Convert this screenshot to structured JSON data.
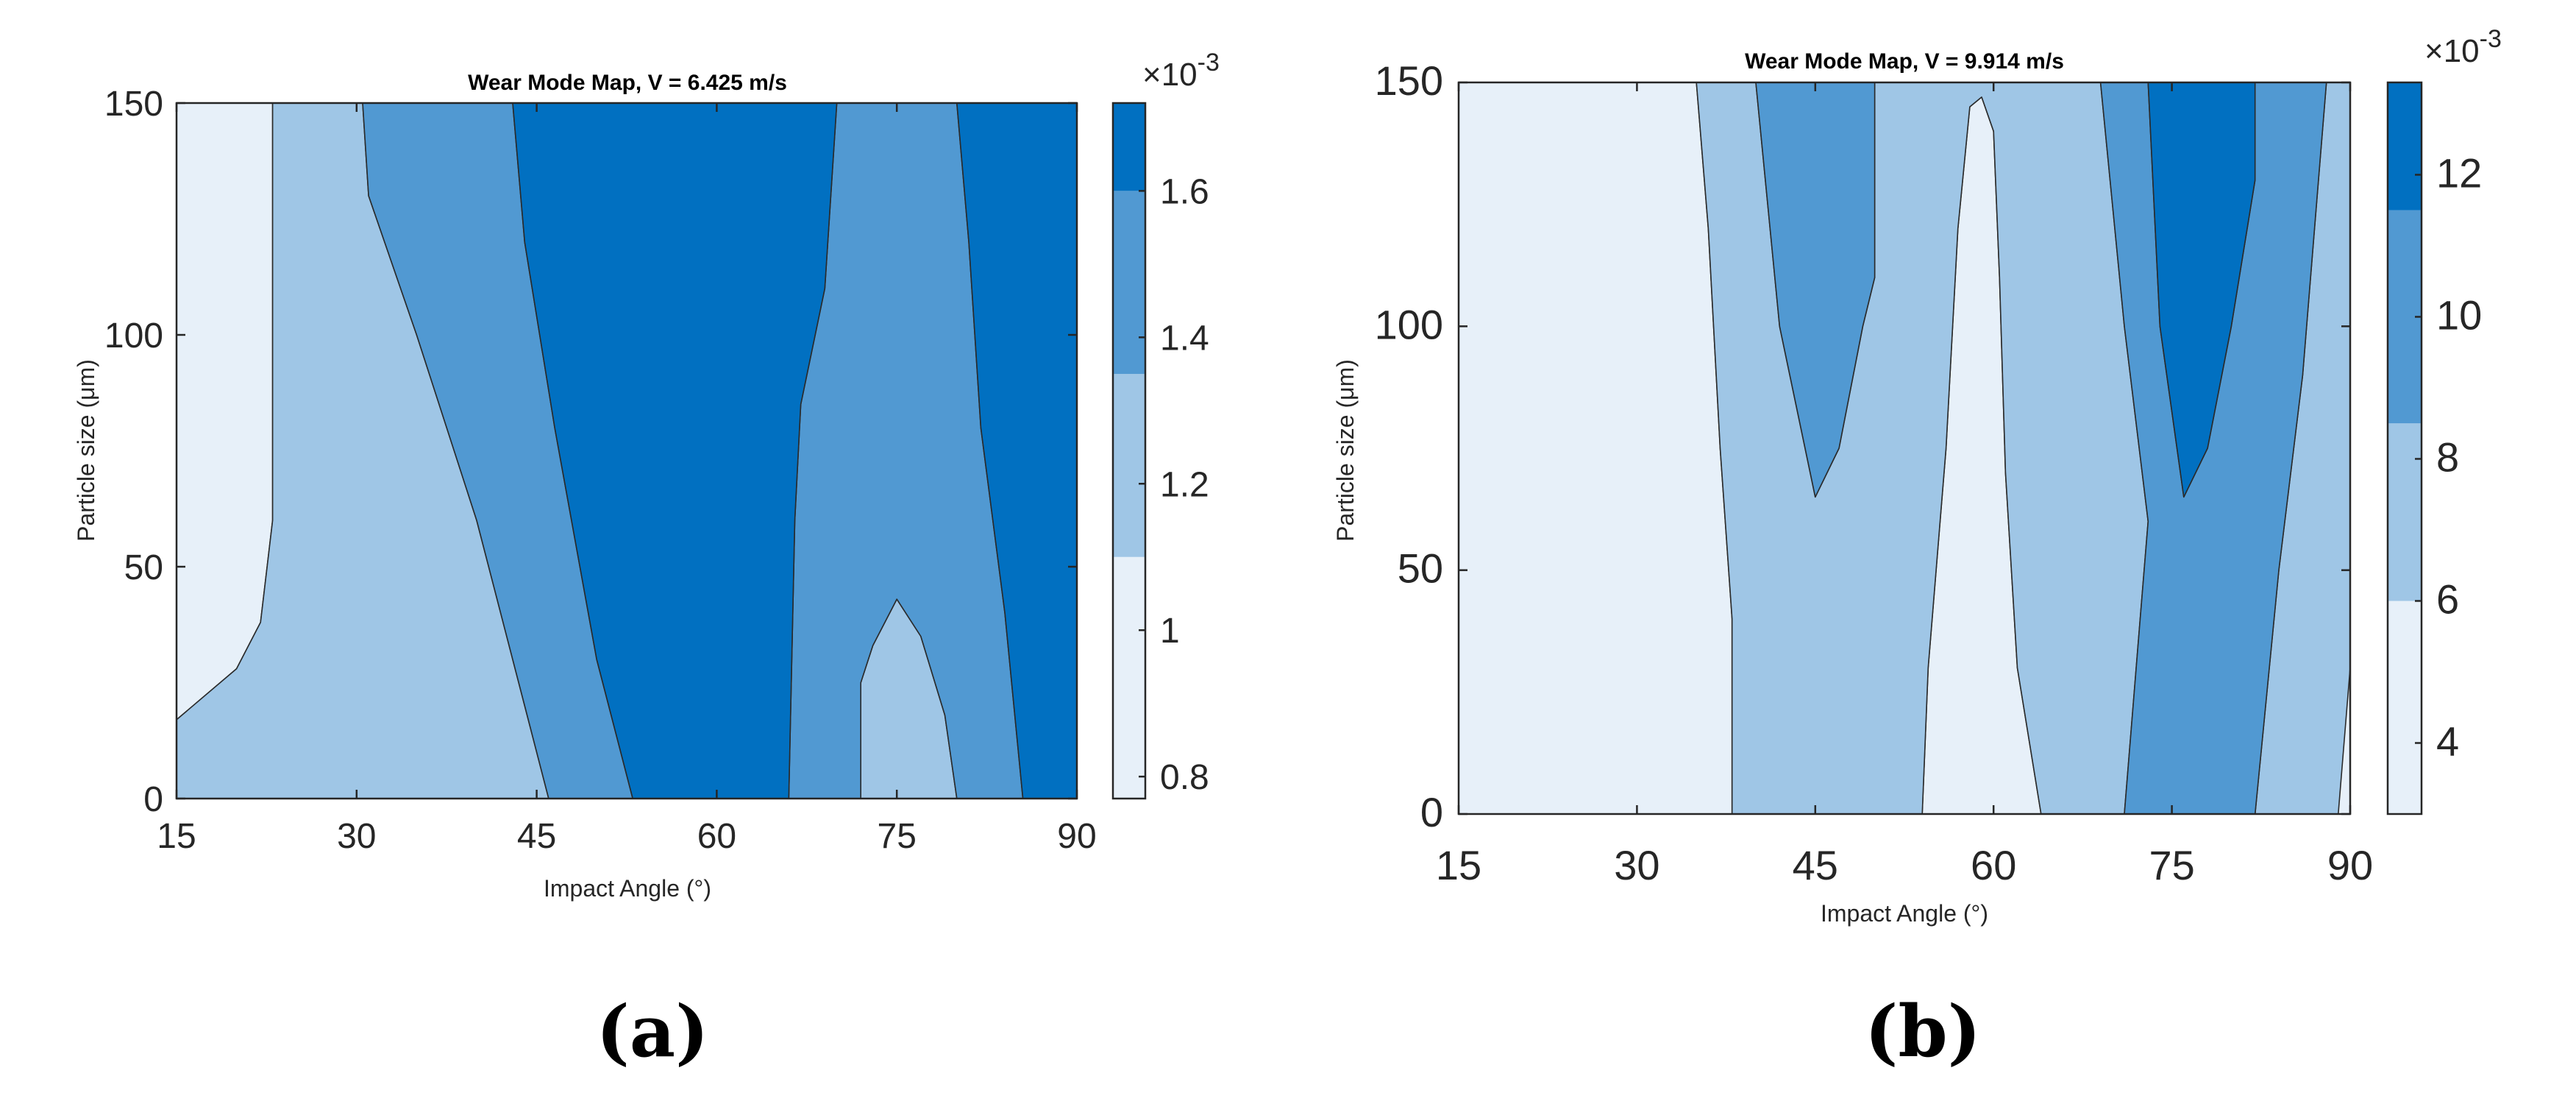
{
  "colors": {
    "level1": "#e7f0f9",
    "level2": "#9fc6e6",
    "level3": "#5199d2",
    "level4": "#0170c1",
    "axis": "#262626"
  },
  "chart_data": [
    {
      "type": "contour",
      "panel": "(a)",
      "title": "Wear Mode Map, V = 6.425 m/s",
      "xlabel": "Impact Angle (°)",
      "ylabel": "Particle size (μm)",
      "xlim": [
        15,
        90
      ],
      "ylim": [
        0,
        150
      ],
      "xticks": [
        "15",
        "30",
        "45",
        "60",
        "75",
        "90"
      ],
      "yticks": [
        "0",
        "50",
        "100",
        "150"
      ],
      "colorbar": {
        "multiplier": "×10",
        "exponent": "-3",
        "ticks": [
          "0.8",
          "1",
          "1.2",
          "1.4",
          "1.6"
        ],
        "levels": [
          0.88,
          1.1,
          1.35,
          1.6
        ],
        "range": [
          0.77,
          1.72
        ]
      },
      "regions": [
        {
          "level": 1,
          "boundary": [
            [
              15,
              17
            ],
            [
              20,
              28
            ],
            [
              22,
              38
            ],
            [
              23,
              60
            ],
            [
              23,
              100
            ],
            [
              23,
              150
            ],
            [
              15,
              150
            ]
          ]
        },
        {
          "level": 2,
          "boundary": [
            [
              15,
              0
            ],
            [
              15,
              17
            ],
            [
              20,
              28
            ],
            [
              22,
              38
            ],
            [
              23,
              60
            ],
            [
              23,
              100
            ],
            [
              23,
              150
            ],
            [
              30.5,
              150
            ],
            [
              31,
              130
            ],
            [
              35,
              100
            ],
            [
              40,
              60
            ],
            [
              44,
              20
            ],
            [
              46,
              0
            ]
          ]
        },
        {
          "level": 2,
          "boundary": [
            [
              72,
              0
            ],
            [
              72,
              25
            ],
            [
              73,
              33
            ],
            [
              75,
              43
            ],
            [
              77,
              35
            ],
            [
              79,
              18
            ],
            [
              80,
              0
            ]
          ]
        },
        {
          "level": 3,
          "boundary": [
            [
              46,
              0
            ],
            [
              44,
              20
            ],
            [
              40,
              60
            ],
            [
              35,
              100
            ],
            [
              31,
              130
            ],
            [
              30.5,
              150
            ],
            [
              43,
              150
            ],
            [
              44,
              120
            ],
            [
              46.5,
              80
            ],
            [
              50,
              30
            ],
            [
              53,
              0
            ]
          ]
        },
        {
          "level": 3,
          "boundary": [
            [
              66,
              0
            ],
            [
              66.5,
              60
            ],
            [
              67,
              85
            ],
            [
              69,
              110
            ],
            [
              70,
              150
            ],
            [
              80,
              150
            ],
            [
              81,
              120
            ],
            [
              82,
              80
            ],
            [
              84,
              40
            ],
            [
              85.5,
              0
            ],
            [
              80,
              0
            ],
            [
              79,
              18
            ],
            [
              77,
              35
            ],
            [
              75,
              43
            ],
            [
              73,
              33
            ],
            [
              72,
              25
            ],
            [
              72,
              0
            ]
          ]
        },
        {
          "level": 4,
          "boundary": [
            [
              53,
              0
            ],
            [
              50,
              30
            ],
            [
              46.5,
              80
            ],
            [
              44,
              120
            ],
            [
              43,
              150
            ],
            [
              70,
              150
            ],
            [
              69,
              110
            ],
            [
              67,
              85
            ],
            [
              66.5,
              60
            ],
            [
              66,
              0
            ]
          ]
        },
        {
          "level": 4,
          "boundary": [
            [
              85.5,
              0
            ],
            [
              84,
              40
            ],
            [
              82,
              80
            ],
            [
              81,
              120
            ],
            [
              80,
              150
            ],
            [
              90,
              150
            ],
            [
              90,
              0
            ]
          ]
        }
      ]
    },
    {
      "type": "contour",
      "panel": "(b)",
      "title": "Wear Mode Map, V = 9.914 m/s",
      "xlabel": "Impact Angle (°)",
      "ylabel": "Particle size (μm)",
      "xlim": [
        15,
        90
      ],
      "ylim": [
        0,
        150
      ],
      "xticks": [
        "15",
        "30",
        "45",
        "60",
        "75",
        "90"
      ],
      "yticks": [
        "0",
        "50",
        "100",
        "150"
      ],
      "colorbar": {
        "multiplier": "×10",
        "exponent": "-3",
        "ticks": [
          "4",
          "6",
          "8",
          "10",
          "12"
        ],
        "levels": [
          3.6,
          6.0,
          8.5,
          11.5
        ],
        "range": [
          3.0,
          13.3
        ]
      },
      "regions": [
        {
          "level": 1,
          "boundary": [
            [
              15,
              0
            ],
            [
              15,
              150
            ],
            [
              35,
              150
            ],
            [
              36,
              120
            ],
            [
              37,
              75
            ],
            [
              38,
              40
            ],
            [
              38,
              0
            ]
          ]
        },
        {
          "level": 1,
          "boundary": [
            [
              54,
              0
            ],
            [
              54.5,
              30
            ],
            [
              55,
              45
            ],
            [
              56,
              75
            ],
            [
              57,
              120
            ],
            [
              58,
              145
            ],
            [
              59,
              147
            ],
            [
              60,
              140
            ],
            [
              60.5,
              110
            ],
            [
              61,
              70
            ],
            [
              62,
              30
            ],
            [
              64,
              0
            ]
          ]
        },
        {
          "level": 2,
          "boundary": [
            [
              38,
              0
            ],
            [
              38,
              40
            ],
            [
              37,
              75
            ],
            [
              36,
              120
            ],
            [
              35,
              150
            ],
            [
              40,
              150
            ],
            [
              42,
              100
            ],
            [
              45,
              65
            ],
            [
              47,
              75
            ],
            [
              49,
              100
            ],
            [
              50,
              110
            ],
            [
              50,
              150
            ],
            [
              69,
              150
            ],
            [
              71,
              100
            ],
            [
              73,
              60
            ],
            [
              72,
              30
            ],
            [
              71,
              0
            ],
            [
              64,
              0
            ],
            [
              62,
              30
            ],
            [
              61,
              70
            ],
            [
              60.5,
              110
            ],
            [
              60,
              140
            ],
            [
              59,
              147
            ],
            [
              58,
              145
            ],
            [
              57,
              120
            ],
            [
              56,
              75
            ],
            [
              55,
              45
            ],
            [
              54.5,
              30
            ],
            [
              54,
              0
            ]
          ]
        },
        {
          "level": 2,
          "boundary": [
            [
              82,
              0
            ],
            [
              84,
              50
            ],
            [
              86,
              90
            ],
            [
              87,
              120
            ],
            [
              88,
              150
            ],
            [
              90,
              150
            ],
            [
              90,
              30
            ],
            [
              89,
              0
            ]
          ]
        },
        {
          "level": 3,
          "boundary": [
            [
              40,
              150
            ],
            [
              42,
              100
            ],
            [
              45,
              65
            ],
            [
              47,
              75
            ],
            [
              49,
              100
            ],
            [
              50,
              110
            ],
            [
              50,
              150
            ]
          ]
        },
        {
          "level": 3,
          "boundary": [
            [
              71,
              0
            ],
            [
              72,
              30
            ],
            [
              73,
              60
            ],
            [
              71,
              100
            ],
            [
              69,
              150
            ],
            [
              73,
              150
            ],
            [
              74,
              100
            ],
            [
              76,
              65
            ],
            [
              78,
              75
            ],
            [
              80,
              100
            ],
            [
              82,
              130
            ],
            [
              82,
              150
            ],
            [
              88,
              150
            ],
            [
              87,
              120
            ],
            [
              86,
              90
            ],
            [
              84,
              50
            ],
            [
              82,
              0
            ]
          ]
        },
        {
          "level": 4,
          "boundary": [
            [
              73,
              150
            ],
            [
              74,
              100
            ],
            [
              76,
              65
            ],
            [
              78,
              75
            ],
            [
              80,
              100
            ],
            [
              82,
              130
            ],
            [
              82,
              150
            ]
          ]
        }
      ]
    }
  ]
}
